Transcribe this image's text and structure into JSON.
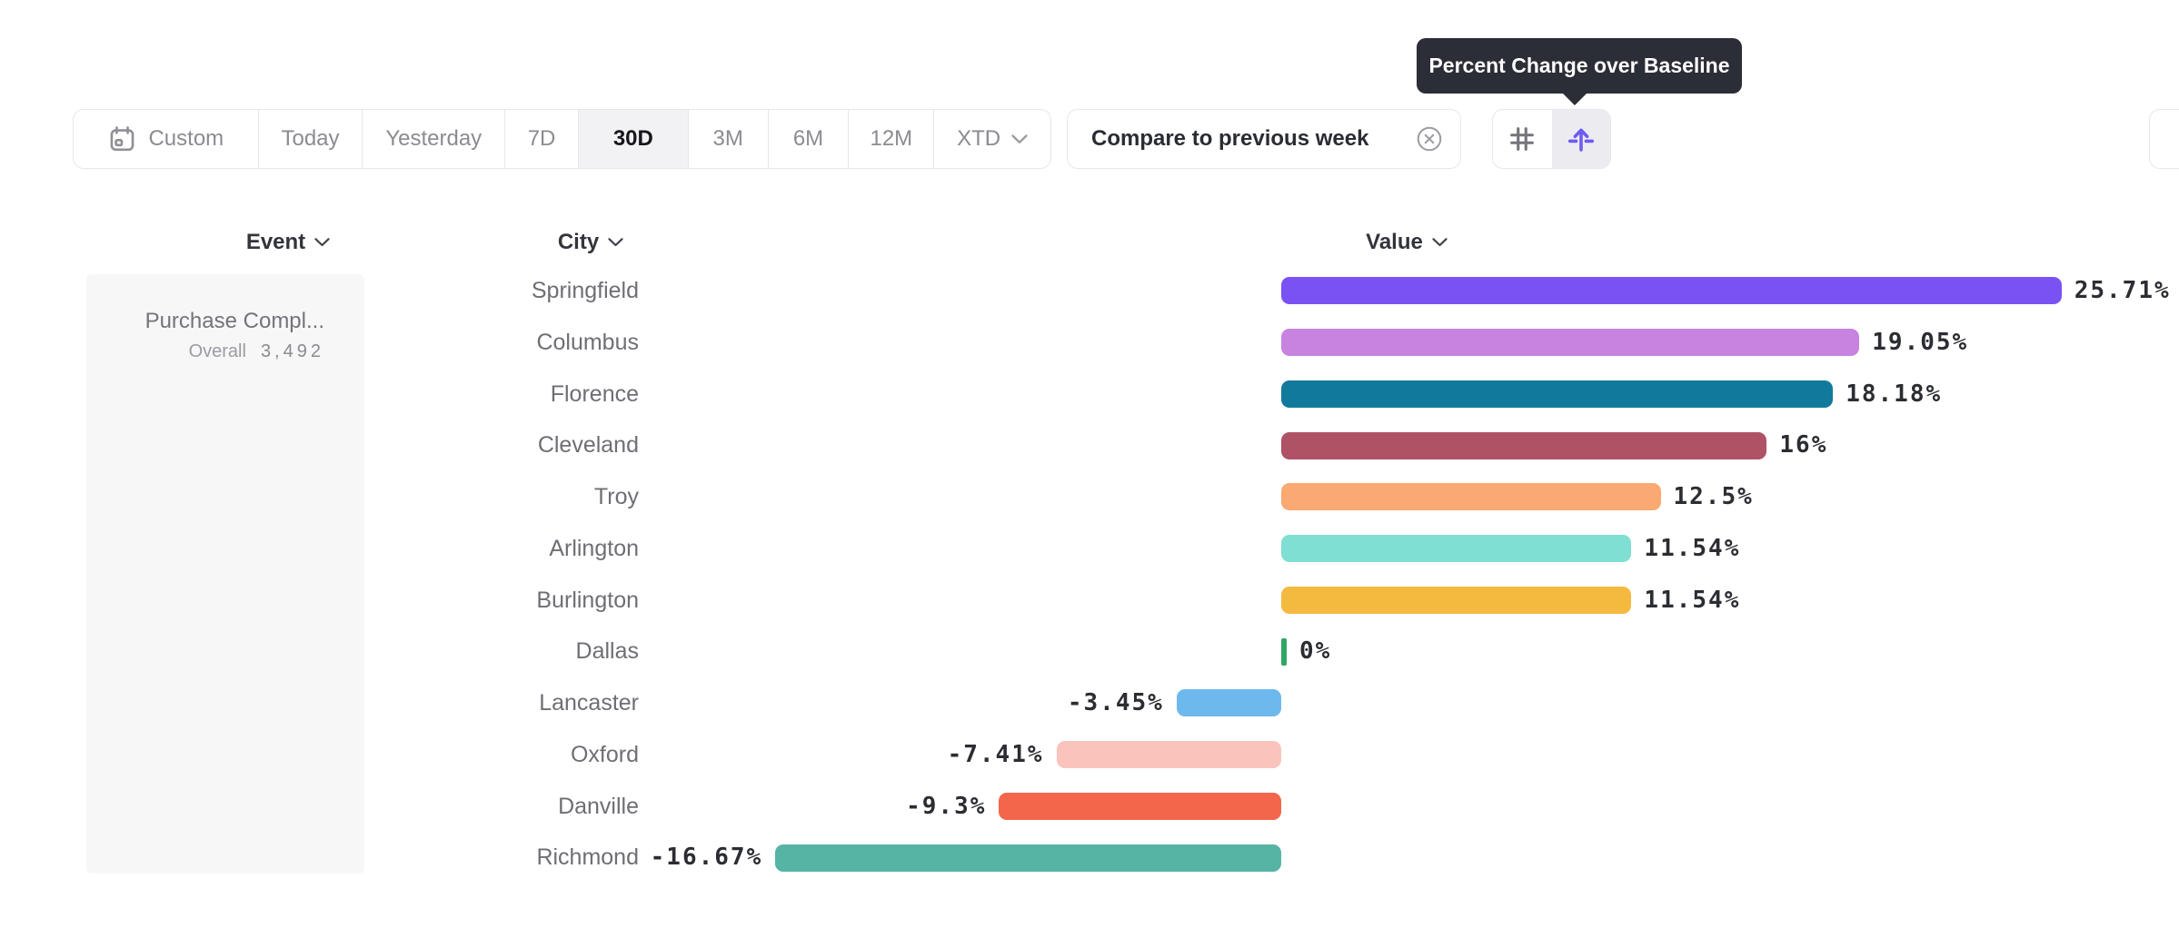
{
  "tooltip": {
    "text": "Percent Change over Baseline",
    "bg_color": "#2b2d37"
  },
  "toolbar": {
    "ranges": [
      {
        "label": "Custom",
        "icon": "calendar-icon",
        "selected": false
      },
      {
        "label": "Today",
        "selected": false
      },
      {
        "label": "Yesterday",
        "selected": false
      },
      {
        "label": "7D",
        "selected": false
      },
      {
        "label": "30D",
        "selected": true
      },
      {
        "label": "3M",
        "selected": false
      },
      {
        "label": "6M",
        "selected": false
      },
      {
        "label": "12M",
        "selected": false
      },
      {
        "label": "XTD",
        "icon": "chevron-down-icon",
        "selected": false
      }
    ],
    "compare": {
      "label": "Compare to previous week",
      "dismiss_icon": "circle-x-icon"
    },
    "view_toggle": [
      {
        "icon": "number-grid-icon",
        "selected": false
      },
      {
        "icon": "percent-change-baseline-icon",
        "selected": true,
        "accent_color": "#6e5bef"
      }
    ]
  },
  "columns": {
    "event": "Event",
    "city": "City",
    "value": "Value"
  },
  "event_panel": {
    "title": "Purchase Compl...",
    "overall_label": "Overall",
    "overall_value": "3,492"
  },
  "chart": {
    "baseline_color": "#2fa565",
    "rows": [
      {
        "city": "Springfield",
        "value_label": "25.71%",
        "pct": 25.71,
        "color": "#7a52f4"
      },
      {
        "city": "Columbus",
        "value_label": "19.05%",
        "pct": 19.05,
        "color": "#c783df"
      },
      {
        "city": "Florence",
        "value_label": "18.18%",
        "pct": 18.18,
        "color": "#117a9c"
      },
      {
        "city": "Cleveland",
        "value_label": "16%",
        "pct": 16,
        "color": "#b05266"
      },
      {
        "city": "Troy",
        "value_label": "12.5%",
        "pct": 12.5,
        "color": "#faa972"
      },
      {
        "city": "Arlington",
        "value_label": "11.54%",
        "pct": 11.54,
        "color": "#7fdfd3"
      },
      {
        "city": "Burlington",
        "value_label": "11.54%",
        "pct": 11.54,
        "color": "#f4ba3f"
      },
      {
        "city": "Dallas",
        "value_label": "0%",
        "pct": 0,
        "color": "#2fa565"
      },
      {
        "city": "Lancaster",
        "value_label": "-3.45%",
        "pct": -3.45,
        "color": "#6db9ee"
      },
      {
        "city": "Oxford",
        "value_label": "-7.41%",
        "pct": -7.41,
        "color": "#fac4bd"
      },
      {
        "city": "Danville",
        "value_label": "-9.3%",
        "pct": -9.3,
        "color": "#f4664b"
      },
      {
        "city": "Richmond",
        "value_label": "-16.67%",
        "pct": -16.67,
        "color": "#56b4a5"
      }
    ]
  },
  "chart_data": {
    "type": "bar",
    "orientation": "horizontal",
    "title": "Percent Change over Baseline",
    "series_name": "Purchase Compl... (Overall 3,492)",
    "categories": [
      "Springfield",
      "Columbus",
      "Florence",
      "Cleveland",
      "Troy",
      "Arlington",
      "Burlington",
      "Dallas",
      "Lancaster",
      "Oxford",
      "Danville",
      "Richmond"
    ],
    "values": [
      25.71,
      19.05,
      18.18,
      16,
      12.5,
      11.54,
      11.54,
      0,
      -3.45,
      -7.41,
      -9.3,
      -16.67
    ],
    "value_labels": [
      "25.71%",
      "19.05%",
      "18.18%",
      "16%",
      "12.5%",
      "11.54%",
      "11.54%",
      "0%",
      "-3.45%",
      "-7.41%",
      "-9.3%",
      "-16.67%"
    ],
    "unit": "%",
    "xlim": [
      -17,
      26
    ],
    "grid": false,
    "legend_position": "none",
    "bar_colors": [
      "#7a52f4",
      "#c783df",
      "#117a9c",
      "#b05266",
      "#faa972",
      "#7fdfd3",
      "#f4ba3f",
      "#2fa565",
      "#6db9ee",
      "#fac4bd",
      "#f4664b",
      "#56b4a5"
    ]
  }
}
